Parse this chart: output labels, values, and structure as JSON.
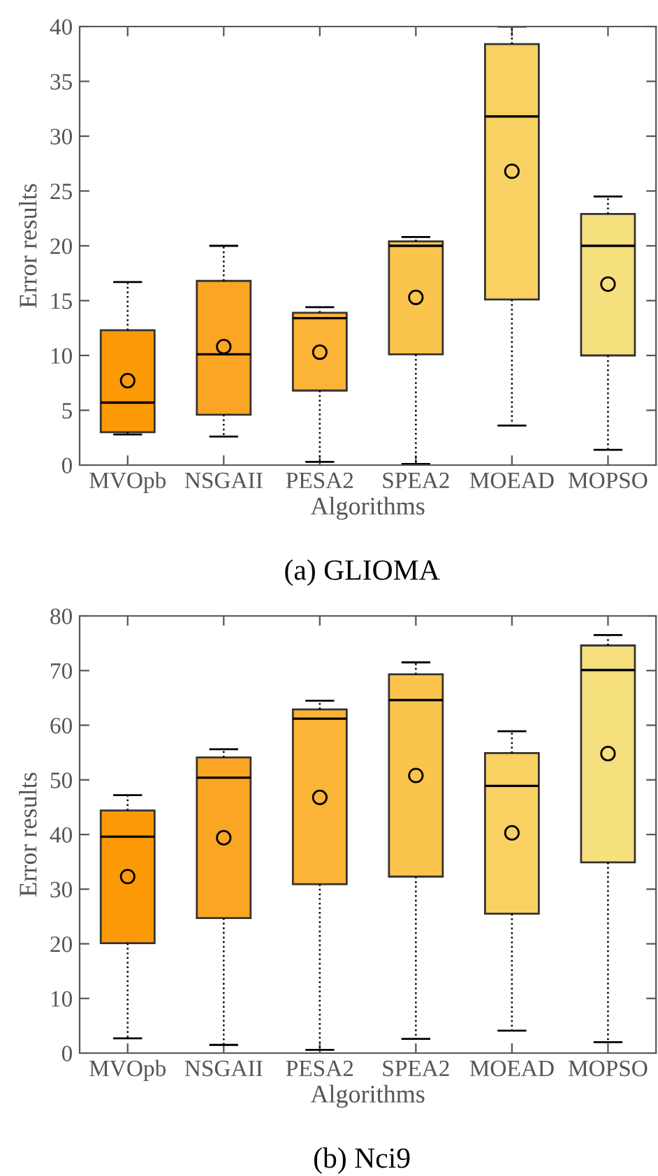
{
  "chart_data": [
    {
      "type": "box",
      "xlabel": "Algorithms",
      "ylabel": "Error results",
      "annotations": [
        "(a) GLIOMA"
      ],
      "categories": [
        "MVOpb",
        "NSGAII",
        "PESA2",
        "SPEA2",
        "MOEAD",
        "MOPSO"
      ],
      "colors": [
        "#fb9a06",
        "#fba524",
        "#fbb436",
        "#fbc44d",
        "#f8d162",
        "#f6df7d"
      ],
      "ylim": [
        0,
        40
      ],
      "yticks": [
        0,
        5,
        10,
        15,
        20,
        25,
        30,
        35,
        40
      ],
      "grid": false,
      "line_style": "dotted",
      "boxes": [
        {
          "low": 2.8,
          "q1": 3.0,
          "median": 5.7,
          "q3": 12.3,
          "high": 16.7,
          "mean": 7.7
        },
        {
          "low": 2.6,
          "q1": 4.6,
          "median": 10.1,
          "q3": 16.8,
          "high": 20.0,
          "mean": 10.8
        },
        {
          "low": 0.3,
          "q1": 6.8,
          "median": 13.4,
          "q3": 13.9,
          "high": 14.4,
          "mean": 10.3
        },
        {
          "low": 0.1,
          "q1": 10.1,
          "median": 20.0,
          "q3": 20.4,
          "high": 20.8,
          "mean": 15.3
        },
        {
          "low": 3.6,
          "q1": 15.1,
          "median": 31.8,
          "q3": 38.4,
          "high": 40.0,
          "mean": 26.8
        },
        {
          "low": 1.4,
          "q1": 10.0,
          "median": 20.0,
          "q3": 22.9,
          "high": 24.5,
          "mean": 16.5
        }
      ]
    },
    {
      "type": "box",
      "xlabel": "Algorithms",
      "ylabel": "Error results",
      "annotations": [
        "(b) Nci9"
      ],
      "categories": [
        "MVOpb",
        "NSGAII",
        "PESA2",
        "SPEA2",
        "MOEAD",
        "MOPSO"
      ],
      "colors": [
        "#fb9a06",
        "#fba524",
        "#fbb436",
        "#fbc44d",
        "#f8d162",
        "#f6df7d"
      ],
      "ylim": [
        0,
        80
      ],
      "yticks": [
        0,
        10,
        20,
        30,
        40,
        50,
        60,
        70,
        80
      ],
      "grid": false,
      "line_style": "dotted",
      "boxes": [
        {
          "low": 2.7,
          "q1": 20.1,
          "median": 39.6,
          "q3": 44.4,
          "high": 47.2,
          "mean": 32.3
        },
        {
          "low": 1.5,
          "q1": 24.7,
          "median": 50.4,
          "q3": 54.1,
          "high": 55.6,
          "mean": 39.4
        },
        {
          "low": 0.6,
          "q1": 30.9,
          "median": 61.2,
          "q3": 62.9,
          "high": 64.5,
          "mean": 46.8
        },
        {
          "low": 2.6,
          "q1": 32.3,
          "median": 64.6,
          "q3": 69.3,
          "high": 71.5,
          "mean": 50.8
        },
        {
          "low": 4.1,
          "q1": 25.5,
          "median": 48.9,
          "q3": 54.9,
          "high": 58.9,
          "mean": 40.3
        },
        {
          "low": 2.0,
          "q1": 34.9,
          "median": 70.1,
          "q3": 74.6,
          "high": 76.5,
          "mean": 54.8
        }
      ]
    }
  ]
}
